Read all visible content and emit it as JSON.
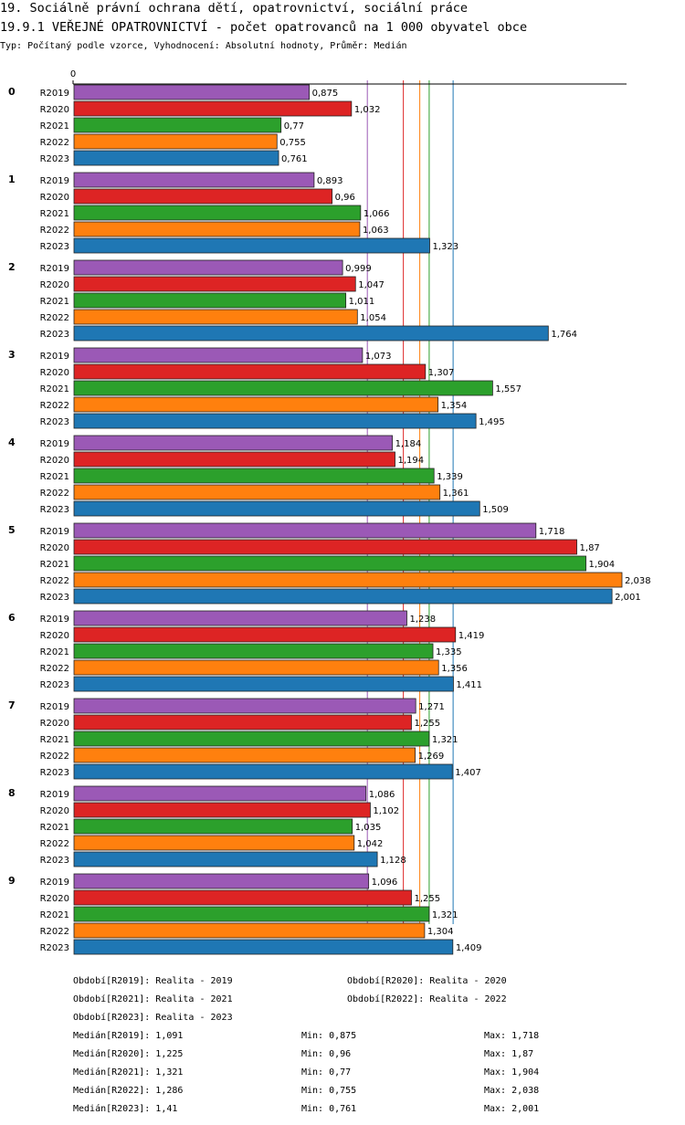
{
  "chart_data": {
    "type": "bar",
    "orientation": "horizontal",
    "title": "19. Sociálně právní ochrana dětí, opatrovnictví, sociální práce",
    "subtitle": "19.9.1 VEŘEJNÉ OPATROVNICTVÍ - počet opatrovanců na 1 000 obyvatel obce",
    "note": "Typ: Počítaný podle vzorce, Vyhodnocení: Absolutní hodnoty, Průměr: Medián",
    "categories": [
      "0",
      "1",
      "2",
      "3",
      "4",
      "5",
      "6",
      "7",
      "8",
      "9"
    ],
    "xlim": [
      0,
      2.055
    ],
    "xticks": [
      0
    ],
    "series": [
      {
        "name": "R2019",
        "color": "#9b59b6",
        "values": [
          0.875,
          0.893,
          0.999,
          1.073,
          1.184,
          1.718,
          1.238,
          1.271,
          1.086,
          1.096
        ],
        "value_labels": [
          "0,875",
          "0,893",
          "0,999",
          "1,073",
          "1,184",
          "1,718",
          "1,238",
          "1,271",
          "1,086",
          "1,096"
        ],
        "legend": "Období[R2019]: Realita - 2019",
        "median": 1.091,
        "median_label": "Medián[R2019]: 1,091",
        "min_label": "Min: 0,875",
        "max_label": "Max: 1,718"
      },
      {
        "name": "R2020",
        "color": "#dd2424",
        "values": [
          1.032,
          0.96,
          1.047,
          1.307,
          1.194,
          1.87,
          1.419,
          1.255,
          1.102,
          1.255
        ],
        "value_labels": [
          "1,032",
          "0,96",
          "1,047",
          "1,307",
          "1,194",
          "1,87",
          "1,419",
          "1,255",
          "1,102",
          "1,255"
        ],
        "legend": "Období[R2020]: Realita - 2020",
        "median": 1.225,
        "median_label": "Medián[R2020]: 1,225",
        "min_label": "Min: 0,96",
        "max_label": "Max: 1,87"
      },
      {
        "name": "R2021",
        "color": "#2ca02c",
        "values": [
          0.77,
          1.066,
          1.011,
          1.557,
          1.339,
          1.904,
          1.335,
          1.321,
          1.035,
          1.321
        ],
        "value_labels": [
          "0,77",
          "1,066",
          "1,011",
          "1,557",
          "1,339",
          "1,904",
          "1,335",
          "1,321",
          "1,035",
          "1,321"
        ],
        "legend": "Období[R2021]: Realita - 2021",
        "median": 1.321,
        "median_label": "Medián[R2021]: 1,321",
        "min_label": "Min: 0,77",
        "max_label": "Max: 1,904"
      },
      {
        "name": "R2022",
        "color": "#ff800e",
        "values": [
          0.755,
          1.063,
          1.054,
          1.354,
          1.361,
          2.038,
          1.356,
          1.269,
          1.042,
          1.304
        ],
        "value_labels": [
          "0,755",
          "1,063",
          "1,054",
          "1,354",
          "1,361",
          "2,038",
          "1,356",
          "1,269",
          "1,042",
          "1,304"
        ],
        "legend": "Období[R2022]: Realita - 2022",
        "median": 1.286,
        "median_label": "Medián[R2022]: 1,286",
        "min_label": "Min: 0,755",
        "max_label": "Max: 2,038"
      },
      {
        "name": "R2023",
        "color": "#1f77b4",
        "values": [
          0.761,
          1.323,
          1.764,
          1.495,
          1.509,
          2.001,
          1.411,
          1.407,
          1.128,
          1.409
        ],
        "value_labels": [
          "0,761",
          "1,323",
          "1,764",
          "1,495",
          "1,509",
          "2,001",
          "1,411",
          "1,407",
          "1,128",
          "1,409"
        ],
        "legend": "Období[R2023]: Realita - 2023",
        "median": 1.41,
        "median_label": "Medián[R2023]: 1,41",
        "min_label": "Min: 0,761",
        "max_label": "Max: 2,001"
      }
    ]
  }
}
